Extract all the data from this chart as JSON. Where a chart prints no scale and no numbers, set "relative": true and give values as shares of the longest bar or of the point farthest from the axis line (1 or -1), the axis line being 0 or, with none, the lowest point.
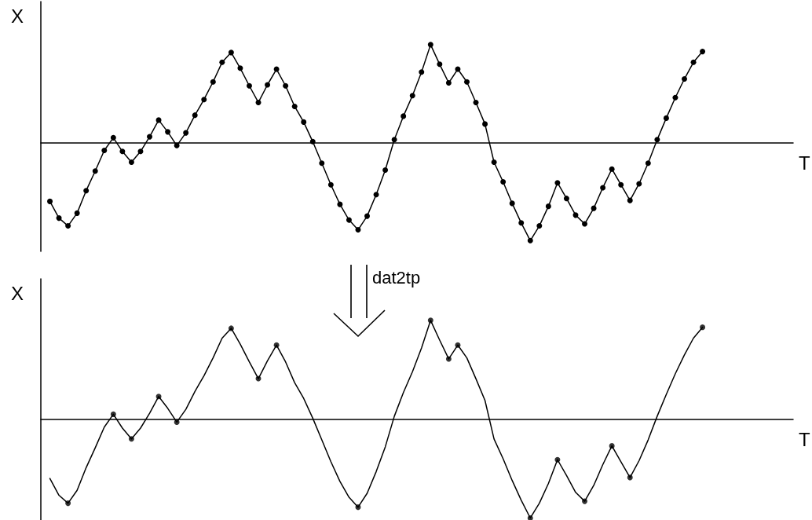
{
  "chart_data": [
    {
      "type": "line",
      "relative": true,
      "tick_labels": false,
      "xlabel": "T",
      "ylabel": "X",
      "categories": [
        null,
        null,
        null,
        null,
        null,
        null,
        null,
        null,
        null,
        null,
        null,
        null,
        null,
        null,
        null,
        null,
        null,
        null,
        null,
        null,
        null,
        null,
        null,
        null,
        null,
        null,
        null,
        null,
        null,
        null,
        null,
        null,
        null,
        null,
        null,
        null,
        null,
        null,
        null,
        null,
        null,
        null,
        null,
        null,
        null,
        null,
        null,
        null,
        null,
        null,
        null,
        null,
        null,
        null,
        null,
        null,
        null,
        null,
        null,
        null,
        null,
        null,
        null,
        null,
        null,
        null,
        null,
        null,
        null,
        null,
        null,
        null,
        null
      ],
      "series": [
        {
          "type": "line",
          "color": "#000000",
          "marker": "circle",
          "values": [
            -0.6,
            -0.77,
            -0.85,
            -0.72,
            -0.49,
            -0.29,
            -0.08,
            0.05,
            -0.09,
            -0.2,
            -0.09,
            0.06,
            0.23,
            0.11,
            -0.03,
            0.1,
            0.28,
            0.44,
            0.62,
            0.82,
            0.92,
            0.76,
            0.58,
            0.41,
            0.59,
            0.75,
            0.58,
            0.37,
            0.21,
            0.01,
            -0.21,
            -0.43,
            -0.63,
            -0.79,
            -0.89,
            -0.75,
            -0.53,
            -0.28,
            0.03,
            0.27,
            0.48,
            0.72,
            1.0,
            0.8,
            0.61,
            0.75,
            0.62,
            0.41,
            0.19,
            -0.2,
            -0.4,
            -0.62,
            -0.82,
            -1.0,
            -0.85,
            -0.65,
            -0.41,
            -0.57,
            -0.74,
            -0.83,
            -0.67,
            -0.46,
            -0.27,
            -0.43,
            -0.59,
            -0.42,
            -0.21,
            0.03,
            0.25,
            0.46,
            0.65,
            0.82,
            0.93
          ]
        }
      ]
    },
    {
      "type": "line",
      "relative": true,
      "tick_labels": false,
      "xlabel": "T",
      "ylabel": "X",
      "annotations": [
        "dat2tp"
      ],
      "categories": [
        null,
        null,
        null,
        null,
        null,
        null,
        null,
        null,
        null,
        null,
        null,
        null,
        null,
        null,
        null,
        null,
        null,
        null,
        null,
        null,
        null,
        null,
        null,
        null,
        null,
        null,
        null,
        null,
        null,
        null,
        null,
        null,
        null,
        null,
        null,
        null,
        null,
        null,
        null,
        null,
        null,
        null,
        null,
        null,
        null,
        null,
        null,
        null,
        null,
        null,
        null,
        null,
        null,
        null,
        null,
        null,
        null,
        null,
        null,
        null,
        null,
        null,
        null,
        null,
        null,
        null,
        null,
        null,
        null,
        null,
        null,
        null,
        null
      ],
      "series": [
        {
          "type": "line",
          "color": "#000000",
          "marker": "none",
          "values": [
            -0.6,
            -0.77,
            -0.85,
            -0.72,
            -0.49,
            -0.29,
            -0.08,
            0.05,
            -0.09,
            -0.2,
            -0.09,
            0.06,
            0.23,
            0.11,
            -0.03,
            0.1,
            0.28,
            0.44,
            0.62,
            0.82,
            0.92,
            0.76,
            0.58,
            0.41,
            0.59,
            0.75,
            0.58,
            0.37,
            0.21,
            0.01,
            -0.21,
            -0.43,
            -0.63,
            -0.79,
            -0.89,
            -0.75,
            -0.53,
            -0.28,
            0.03,
            0.27,
            0.48,
            0.72,
            1.0,
            0.8,
            0.61,
            0.75,
            0.62,
            0.41,
            0.19,
            -0.2,
            -0.4,
            -0.62,
            -0.82,
            -1.0,
            -0.85,
            -0.65,
            -0.41,
            -0.57,
            -0.74,
            -0.83,
            -0.67,
            -0.46,
            -0.27,
            -0.43,
            -0.59,
            -0.42,
            -0.21,
            0.03,
            0.25,
            0.46,
            0.65,
            0.82,
            0.93
          ]
        },
        {
          "type": "scatter",
          "color": "#000000",
          "marker": "circle",
          "values": [
            null,
            null,
            -0.85,
            null,
            null,
            null,
            null,
            0.05,
            null,
            -0.2,
            null,
            null,
            0.23,
            null,
            -0.03,
            null,
            null,
            null,
            null,
            null,
            0.92,
            null,
            null,
            0.41,
            null,
            0.75,
            null,
            null,
            null,
            null,
            null,
            null,
            null,
            null,
            -0.89,
            null,
            null,
            null,
            null,
            null,
            null,
            null,
            1.0,
            null,
            0.61,
            0.75,
            null,
            null,
            null,
            null,
            null,
            null,
            null,
            -1.0,
            null,
            null,
            -0.41,
            null,
            null,
            -0.83,
            null,
            null,
            -0.27,
            null,
            -0.59,
            null,
            null,
            null,
            null,
            null,
            null,
            null,
            0.93
          ]
        }
      ]
    }
  ]
}
